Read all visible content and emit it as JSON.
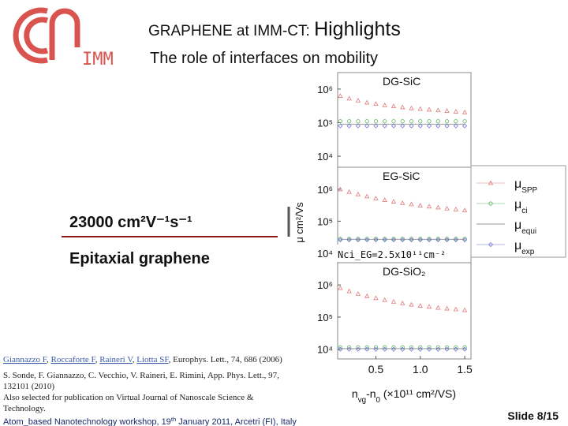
{
  "logo": "IMM",
  "header": {
    "title": [
      {
        "text": "GRAPHENE at IMM-CT: "
      },
      {
        "text": "Highlights",
        "large": true
      }
    ],
    "subtitle": "The role of interfaces on mobility"
  },
  "highlight": {
    "mobility": "23000 cm²V⁻¹s⁻¹",
    "material": "Epitaxial graphene"
  },
  "plot": {
    "y_label": "μ cm²/Vs",
    "x_label": [
      {
        "text": "n"
      },
      {
        "text": "vg",
        "sub": true
      },
      {
        "text": "-n"
      },
      {
        "text": "0",
        "sub": true
      },
      {
        "text": " (×10¹¹ cm²/VS)"
      }
    ],
    "annotation": "Nci_EG=2.5x10¹¹cm⁻²"
  },
  "chart_data": [
    {
      "type": "scatter",
      "title": "DG-SiC",
      "log_y": true,
      "x": [
        0.1,
        0.2,
        0.3,
        0.4,
        0.5,
        0.6,
        0.7,
        0.8,
        0.9,
        1.0,
        1.1,
        1.2,
        1.3,
        1.4,
        1.5
      ],
      "xlim": [
        0.07,
        1.57
      ],
      "ylim": [
        4700,
        3100000
      ],
      "yticks": [
        {
          "value": 10000,
          "label": "10⁴"
        },
        {
          "value": 100000,
          "label": "10⁵"
        },
        {
          "value": 1000000,
          "label": "10⁶"
        }
      ],
      "series": [
        {
          "name": "μSPP",
          "color": "#e07a7a",
          "marker": "triangle",
          "values": [
            630000,
            525000,
            457000,
            398000,
            363000,
            331000,
            309000,
            288000,
            269000,
            257000,
            245000,
            234000,
            224000,
            214000,
            204000
          ]
        },
        {
          "name": "μci",
          "color": "#5cb85c",
          "marker": "circle",
          "values": [
            110000,
            110000,
            110000,
            110000,
            110000,
            110000,
            110000,
            110000,
            110000,
            110000,
            110000,
            110000,
            110000,
            110000,
            110000
          ]
        },
        {
          "name": "μequi",
          "color": "#9a9a9a",
          "marker": "line",
          "values": [
            90000,
            90000,
            90000,
            90000,
            90000,
            90000,
            90000,
            90000,
            90000,
            90000,
            90000,
            90000,
            90000,
            90000,
            90000
          ]
        },
        {
          "name": "μexp",
          "color": "#6f6fd8",
          "marker": "diamond",
          "values": [
            80000,
            80000,
            80000,
            80000,
            80000,
            80000,
            80000,
            80000,
            80000,
            80000,
            80000,
            80000,
            80000,
            80000,
            80000
          ]
        }
      ]
    },
    {
      "type": "scatter",
      "title": "EG-SiC",
      "log_y": true,
      "x": [
        0.1,
        0.2,
        0.3,
        0.4,
        0.5,
        0.6,
        0.7,
        0.8,
        0.9,
        1.0,
        1.1,
        1.2,
        1.3,
        1.4,
        1.5
      ],
      "xlim": [
        0.07,
        1.57
      ],
      "ylim": [
        5000,
        4900000
      ],
      "yticks": [
        {
          "value": 10000,
          "label": "10⁴"
        },
        {
          "value": 100000,
          "label": "10⁵"
        },
        {
          "value": 1000000,
          "label": "10⁶"
        }
      ],
      "series": [
        {
          "color": "#e07a7a",
          "marker": "triangle",
          "values": [
            1000000,
            830000,
            700000,
            600000,
            520000,
            460000,
            410000,
            370000,
            340000,
            310000,
            290000,
            270000,
            250000,
            235000,
            220000
          ]
        },
        {
          "color": "#5cb85c",
          "marker": "circle",
          "values": [
            28000,
            28000,
            28000,
            28000,
            28000,
            28000,
            28000,
            28000,
            28000,
            28000,
            28000,
            28000,
            28000,
            28000,
            28000
          ]
        },
        {
          "color": "#9a9a9a",
          "marker": "line",
          "values": [
            27000,
            27000,
            27000,
            27000,
            27000,
            27000,
            27000,
            27000,
            27000,
            27000,
            27000,
            27000,
            27000,
            27000,
            27000
          ]
        },
        {
          "color": "#6f6fd8",
          "marker": "diamond",
          "values": [
            26000,
            26000,
            26000,
            26000,
            26000,
            26000,
            26000,
            26000,
            26000,
            26000,
            26000,
            26000,
            26000,
            26000,
            26000
          ]
        }
      ]
    },
    {
      "type": "scatter",
      "title": "DG-SiO₂",
      "log_y": true,
      "x": [
        0.1,
        0.2,
        0.3,
        0.4,
        0.5,
        0.6,
        0.7,
        0.8,
        0.9,
        1.0,
        1.1,
        1.2,
        1.3,
        1.4,
        1.5
      ],
      "xlim": [
        0.07,
        1.57
      ],
      "ylim": [
        5000,
        4900000
      ],
      "xticks": [
        0.5,
        {
          "value": 1,
          "label": "1.0"
        },
        1.5
      ],
      "yticks": [
        {
          "value": 10000,
          "label": "10⁴"
        },
        {
          "value": 100000,
          "label": "10⁵"
        },
        {
          "value": 1000000,
          "label": "10⁶"
        }
      ],
      "series": [
        {
          "color": "#e07a7a",
          "marker": "triangle",
          "values": [
            800000,
            640000,
            530000,
            450000,
            390000,
            340000,
            300000,
            270000,
            245000,
            225000,
            210000,
            195000,
            185000,
            175000,
            165000
          ]
        },
        {
          "color": "#5cb85c",
          "marker": "circle",
          "values": [
            11500,
            11500,
            11500,
            11500,
            11500,
            11500,
            11500,
            11500,
            11500,
            11500,
            11500,
            11500,
            11500,
            11500,
            11500
          ]
        },
        {
          "color": "#9a9a9a",
          "marker": "line",
          "values": [
            10500,
            10500,
            10500,
            10500,
            10500,
            10500,
            10500,
            10500,
            10500,
            10500,
            10500,
            10500,
            10500,
            10500,
            10500
          ]
        },
        {
          "color": "#6f6fd8",
          "marker": "diamond",
          "values": [
            10000,
            10000,
            10000,
            10000,
            10000,
            10000,
            10000,
            10000,
            10000,
            10000,
            10000,
            10000,
            10000,
            10000,
            10000
          ]
        }
      ]
    }
  ],
  "references": {
    "first": [
      {
        "text": "Giannazzo F",
        "link": true
      },
      {
        "text": ", "
      },
      {
        "text": "Roccaforte F",
        "link": true
      },
      {
        "text": ", "
      },
      {
        "text": "Raineri V",
        "link": true
      },
      {
        "text": ", "
      },
      {
        "text": "Liotta SF",
        "link": true
      },
      {
        "text": ", Europhys. Lett., 74, 686 (2006)"
      }
    ],
    "second": [
      "S. Sonde, F. Giannazzo, C. Vecchio, V. Raineri, E. Rimini, App. Phys. Lett., 97,",
      "132101 (2010)",
      "Also selected for publication on Virtual Journal of Nanoscale Science &",
      "Technology."
    ]
  },
  "footer": {
    "event": [
      {
        "text": "Atom_based Nanotechnology workshop, 19"
      },
      {
        "text": "th",
        "sup": true
      },
      {
        "text": " January 2011, Arcetri (FI), Italy"
      }
    ],
    "slide": "Slide 8/15"
  }
}
